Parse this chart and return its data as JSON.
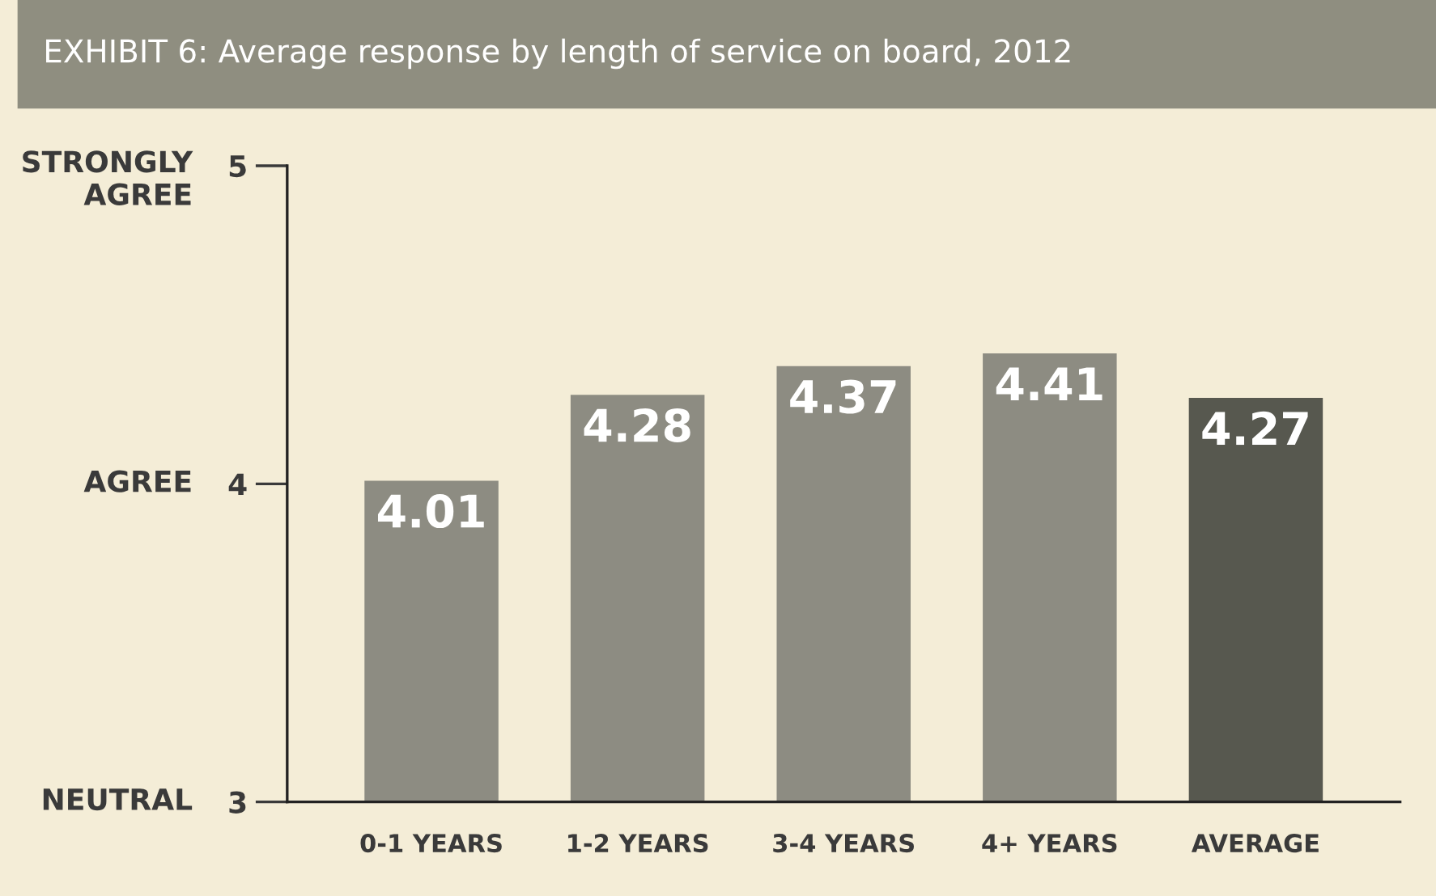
{
  "chart_data": {
    "type": "bar",
    "title": "EXHIBIT 6: Average response by length of service on board, 2012",
    "categories": [
      "0-1 YEARS",
      "1-2 YEARS",
      "3-4 YEARS",
      "4+ YEARS",
      "AVERAGE"
    ],
    "values": [
      4.01,
      4.28,
      4.37,
      4.41,
      4.27
    ],
    "colors": [
      "#8d8c82",
      "#8d8c82",
      "#8d8c82",
      "#8d8c82",
      "#57584f"
    ],
    "ylim": [
      3,
      5
    ],
    "yticks": [
      3,
      4,
      5
    ],
    "annotations": [
      "NEUTRAL",
      "AGREE",
      "STRONGLY\nAGREE"
    ],
    "data_labels": true,
    "grid": false,
    "legend": false
  }
}
